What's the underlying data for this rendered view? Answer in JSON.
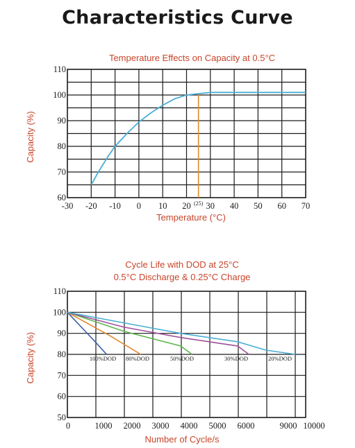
{
  "page_title": "Characteristics Curve",
  "chart_data": [
    {
      "type": "line",
      "title": "Temperature Effects on Capacity at 0.5°C",
      "xlabel": "Temperature (°C)",
      "ylabel": "Capacity (%)",
      "xlim": [
        -30,
        70
      ],
      "ylim": [
        60,
        110
      ],
      "x_ticks": [
        "-30",
        "-20",
        "-10",
        "0",
        "10",
        "20",
        "30",
        "40",
        "50",
        "60",
        "70"
      ],
      "y_ticks": [
        "60",
        "70",
        "80",
        "90",
        "100",
        "110"
      ],
      "grid": true,
      "reference_line": {
        "x": 25,
        "label": "(25)",
        "color": "#e0892b"
      },
      "series": [
        {
          "color": "#4aaed6",
          "points": [
            [
              -20,
              65
            ],
            [
              -17,
              70
            ],
            [
              -13,
              76
            ],
            [
              -10,
              80
            ],
            [
              -5,
              85
            ],
            [
              0,
              89.5
            ],
            [
              5,
              93
            ],
            [
              10,
              96
            ],
            [
              15,
              98.5
            ],
            [
              20,
              100
            ],
            [
              25,
              100.5
            ],
            [
              30,
              101
            ],
            [
              70,
              101
            ]
          ]
        }
      ]
    },
    {
      "type": "line",
      "title": "Cycle Life with DOD at 25°C",
      "subtitle": "0.5°C Discharge & 0.25°C Charge",
      "xlabel": "Number of Cycle/s",
      "ylabel": "Capacity (%)",
      "xlim": [
        0,
        10000
      ],
      "ylim": [
        50,
        110
      ],
      "x_ticks": [
        "0",
        "1000",
        "2000",
        "3000",
        "4000",
        "5000",
        "6000",
        "9000",
        "10000"
      ],
      "y_ticks": [
        "50",
        "60",
        "70",
        "80",
        "90",
        "100",
        "110"
      ],
      "grid": true,
      "series": [
        {
          "name": "100%DOD",
          "color": "#3b5ea8",
          "points": [
            [
              0,
              100
            ],
            [
              1000,
              86
            ],
            [
              1400,
              80
            ]
          ]
        },
        {
          "name": "80%DOD",
          "color": "#e0892b",
          "points": [
            [
              0,
              100
            ],
            [
              1500,
              89
            ],
            [
              2600,
              80
            ]
          ]
        },
        {
          "name": "50%DOD",
          "color": "#5db54a",
          "points": [
            [
              0,
              100
            ],
            [
              2000,
              91
            ],
            [
              4000,
              84
            ],
            [
              4400,
              80
            ]
          ]
        },
        {
          "name": "30%DOD",
          "color": "#a0519a",
          "points": [
            [
              0,
              100
            ],
            [
              2000,
              93
            ],
            [
              4000,
              88
            ],
            [
              6000,
              84
            ],
            [
              6800,
              80
            ]
          ]
        },
        {
          "name": "20%DOD",
          "color": "#4aaed6",
          "points": [
            [
              0,
              100
            ],
            [
              2000,
              95
            ],
            [
              4000,
              90
            ],
            [
              6000,
              86
            ],
            [
              8000,
              82
            ],
            [
              9600,
              80
            ]
          ]
        }
      ]
    }
  ]
}
